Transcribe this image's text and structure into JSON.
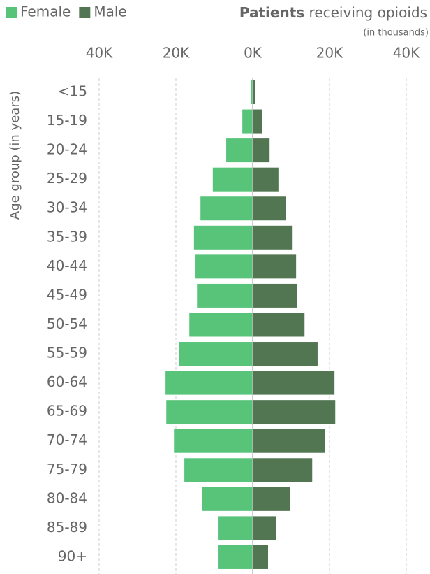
{
  "chart_data": {
    "type": "pyramid",
    "title_bold": "Patients",
    "title": "receiving opioids",
    "subtitle": "(in thousands)",
    "y_label": "Age group (in years)",
    "categories": [
      "<15",
      "15-19",
      "20-24",
      "25-29",
      "30-34",
      "35-39",
      "40-44",
      "45-49",
      "50-54",
      "55-59",
      "60-64",
      "65-69",
      "70-74",
      "75-79",
      "80-84",
      "85-89",
      "90+"
    ],
    "series": [
      {
        "name": "Female",
        "color": "#57c47a",
        "side": "left",
        "values": [
          0.5,
          2.7,
          6.9,
          10.4,
          13.6,
          15.3,
          14.9,
          14.5,
          16.5,
          19.1,
          22.7,
          22.5,
          20.5,
          17.8,
          13.1,
          8.9,
          8.9
        ]
      },
      {
        "name": "Male",
        "color": "#527552",
        "side": "right",
        "values": [
          0.7,
          2.4,
          4.4,
          6.7,
          8.7,
          10.4,
          11.3,
          11.5,
          13.5,
          16.9,
          21.3,
          21.5,
          18.9,
          15.5,
          9.8,
          6.0,
          4.0
        ]
      }
    ],
    "xlim": [
      0,
      40
    ],
    "xticks_female": [
      {
        "value": 40,
        "label": "40K"
      },
      {
        "value": 20,
        "label": "20K"
      }
    ],
    "xticks_male": [
      {
        "value": 0,
        "label": "0K"
      },
      {
        "value": 20,
        "label": "20K"
      },
      {
        "value": 40,
        "label": "40K"
      }
    ],
    "grid": true,
    "legend": "top-left"
  }
}
